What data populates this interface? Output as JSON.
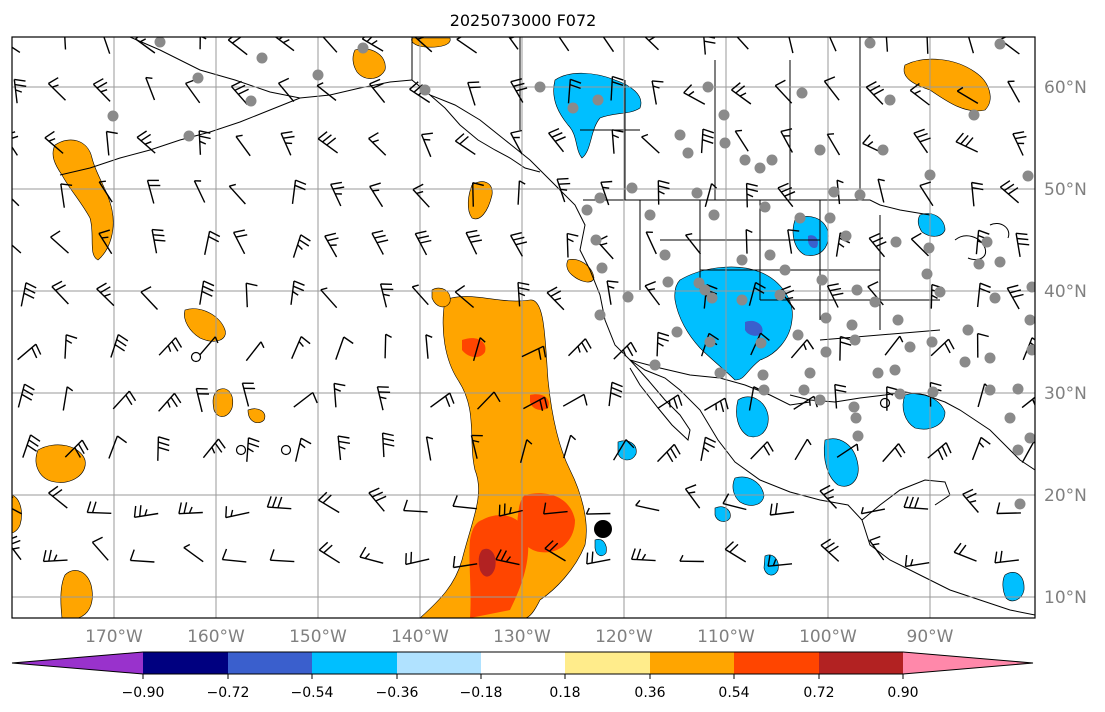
{
  "title": "2025073000 F072",
  "map": {
    "longitude_labels": [
      "170°W",
      "160°W",
      "150°W",
      "140°W",
      "130°W",
      "120°W",
      "110°W",
      "100°W",
      "90°W"
    ],
    "latitude_labels": [
      "60°N",
      "50°N",
      "40°N",
      "30°N",
      "20°N",
      "10°N"
    ],
    "lon_range": [
      -180,
      -80
    ],
    "lat_range": [
      8,
      65
    ],
    "gridlines": true,
    "barbs": "wind barbs over the domain",
    "station_markers": "gray dots over North America",
    "cyclone_marker_color": "#000000"
  },
  "colorbar": {
    "orientation": "horizontal",
    "extend": "both",
    "tick_labels": [
      "−0.90",
      "−0.72",
      "−0.54",
      "−0.36",
      "−0.18",
      "0.18",
      "0.36",
      "0.54",
      "0.72",
      "0.90"
    ],
    "colors": [
      "#9932cc",
      "#000080",
      "#3a5fcd",
      "#00bfff",
      "#b0e2ff",
      "#ffffff",
      "#ffec8b",
      "#ffa500",
      "#ff4500",
      "#b22222",
      "#ff88aa"
    ]
  },
  "chart_data": {
    "type": "heatmap",
    "title": "2025073000 F072",
    "xlabel": "",
    "ylabel": "",
    "x_ticks": [
      "170°W",
      "160°W",
      "150°W",
      "140°W",
      "130°W",
      "120°W",
      "110°W",
      "100°W",
      "90°W"
    ],
    "y_ticks": [
      "60°N",
      "50°N",
      "40°N",
      "30°N",
      "20°N",
      "10°N"
    ],
    "colorbar_levels": [
      -0.9,
      -0.72,
      -0.54,
      -0.36,
      -0.18,
      0.18,
      0.36,
      0.54,
      0.72,
      0.9
    ]
  }
}
